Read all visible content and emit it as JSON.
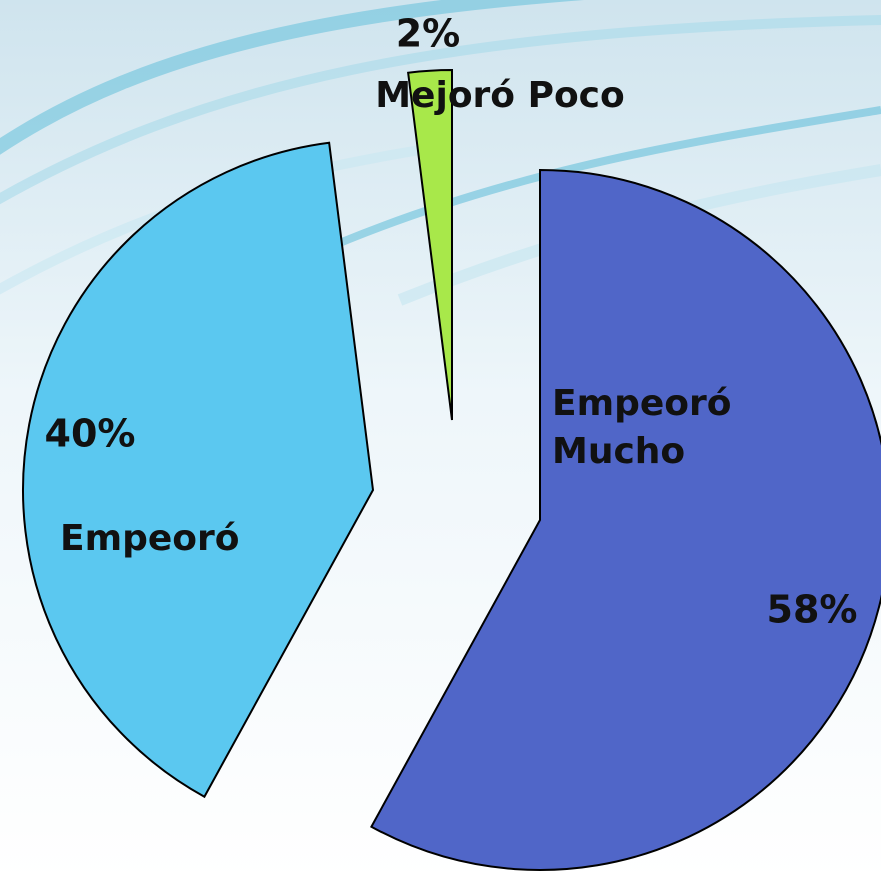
{
  "chart_data": {
    "type": "pie",
    "categories": [
      "Empeoró Mucho",
      "Empeoró",
      "Mejoró Poco"
    ],
    "values": [
      58,
      40,
      2
    ],
    "value_labels": [
      "58%",
      "40%",
      "2%"
    ],
    "colors": [
      "#5066c8",
      "#5bc8f0",
      "#a8e84a"
    ]
  }
}
